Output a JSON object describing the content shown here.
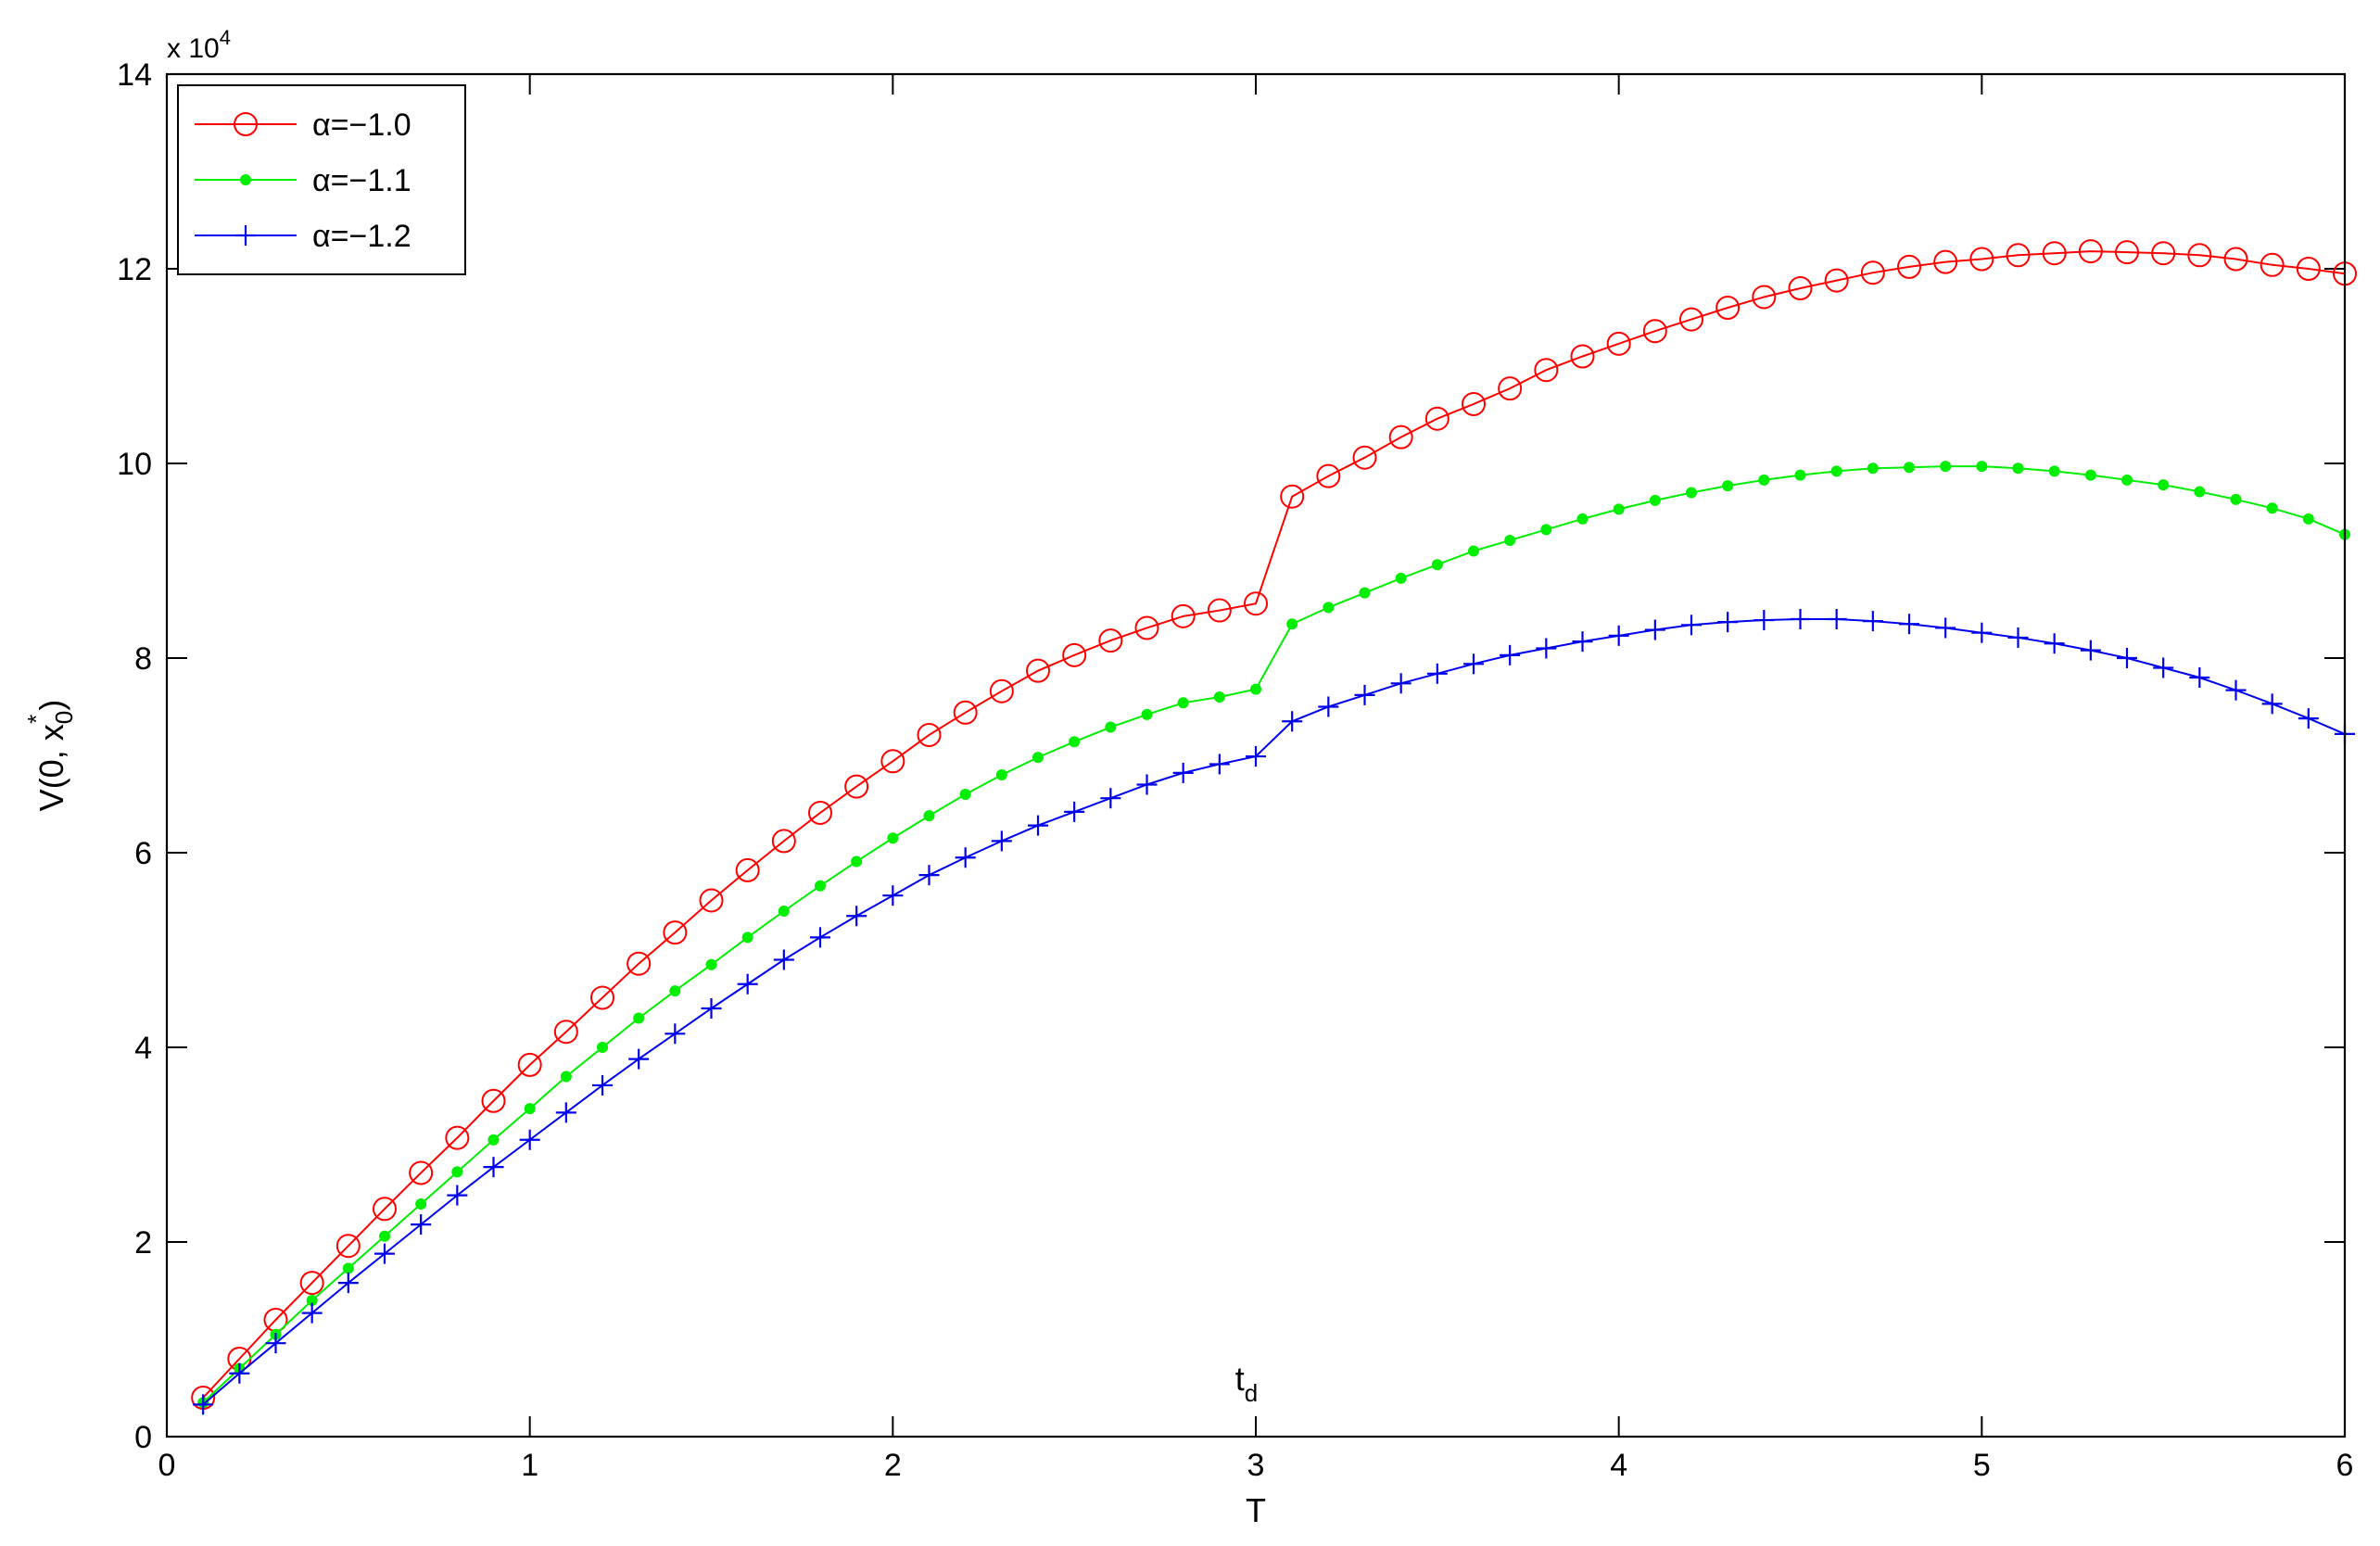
{
  "chart_data": {
    "type": "line",
    "title": "",
    "xlabel": "T",
    "ylabel_main": "V(0, x",
    "ylabel_sub": "0",
    "ylabel_sup": "*",
    "ylabel_close": ")",
    "y_multiplier_prefix": "x 10",
    "y_multiplier_exp": "4",
    "xlim": [
      0,
      6
    ],
    "ylim": [
      0,
      14
    ],
    "y_scale_factor": 10000,
    "xticks": [
      "0",
      "1",
      "2",
      "3",
      "4",
      "5",
      "6"
    ],
    "yticks": [
      "0",
      "2",
      "4",
      "6",
      "8",
      "10",
      "12",
      "14"
    ],
    "annotation": {
      "main": "t",
      "sub": "d",
      "x": 3
    },
    "legend_position": "top-left",
    "grid": false,
    "x": [
      0.1,
      0.2,
      0.3,
      0.4,
      0.5,
      0.6,
      0.7,
      0.8,
      0.9,
      1.0,
      1.1,
      1.2,
      1.3,
      1.4,
      1.5,
      1.6,
      1.7,
      1.8,
      1.9,
      2.0,
      2.1,
      2.2,
      2.3,
      2.4,
      2.5,
      2.6,
      2.7,
      2.8,
      2.9,
      3.0,
      3.1,
      3.2,
      3.3,
      3.4,
      3.5,
      3.6,
      3.7,
      3.8,
      3.9,
      4.0,
      4.1,
      4.2,
      4.3,
      4.4,
      4.5,
      4.6,
      4.7,
      4.8,
      4.9,
      5.0,
      5.1,
      5.2,
      5.3,
      5.4,
      5.5,
      5.6,
      5.7,
      5.8,
      5.9,
      6.0
    ],
    "series": [
      {
        "name": "α=−1.0",
        "color": "#ff0000",
        "marker": "circle",
        "values": [
          0.4,
          0.8,
          1.2,
          1.58,
          1.96,
          2.34,
          2.71,
          3.07,
          3.45,
          3.82,
          4.16,
          4.51,
          4.86,
          5.18,
          5.51,
          5.82,
          6.12,
          6.41,
          6.68,
          6.94,
          7.21,
          7.44,
          7.66,
          7.87,
          8.03,
          8.18,
          8.31,
          8.43,
          8.49,
          8.56,
          9.66,
          9.87,
          10.06,
          10.27,
          10.46,
          10.61,
          10.77,
          10.96,
          11.1,
          11.23,
          11.36,
          11.48,
          11.6,
          11.71,
          11.8,
          11.88,
          11.96,
          12.02,
          12.07,
          12.1,
          12.14,
          12.16,
          12.18,
          12.17,
          12.16,
          12.14,
          12.1,
          12.04,
          12.0,
          11.95
        ]
      },
      {
        "name": "α=−1.1",
        "color": "#00ee00",
        "marker": "dot",
        "values": [
          0.35,
          0.7,
          1.05,
          1.4,
          1.73,
          2.06,
          2.39,
          2.72,
          3.05,
          3.37,
          3.7,
          4.0,
          4.3,
          4.58,
          4.85,
          5.13,
          5.4,
          5.66,
          5.91,
          6.15,
          6.38,
          6.6,
          6.8,
          6.98,
          7.14,
          7.29,
          7.42,
          7.54,
          7.6,
          7.68,
          8.35,
          8.52,
          8.67,
          8.82,
          8.96,
          9.1,
          9.21,
          9.32,
          9.43,
          9.53,
          9.62,
          9.7,
          9.77,
          9.83,
          9.88,
          9.92,
          9.95,
          9.96,
          9.97,
          9.97,
          9.95,
          9.92,
          9.88,
          9.83,
          9.78,
          9.71,
          9.63,
          9.54,
          9.43,
          9.27
        ]
      },
      {
        "name": "α=−1.2",
        "color": "#0000ee",
        "marker": "plus",
        "values": [
          0.33,
          0.65,
          0.96,
          1.27,
          1.58,
          1.88,
          2.18,
          2.48,
          2.77,
          3.05,
          3.33,
          3.61,
          3.88,
          4.14,
          4.4,
          4.65,
          4.9,
          5.13,
          5.35,
          5.56,
          5.77,
          5.95,
          6.12,
          6.28,
          6.42,
          6.56,
          6.7,
          6.82,
          6.91,
          6.99,
          7.35,
          7.5,
          7.62,
          7.74,
          7.84,
          7.94,
          8.03,
          8.1,
          8.17,
          8.23,
          8.29,
          8.34,
          8.37,
          8.39,
          8.4,
          8.4,
          8.38,
          8.35,
          8.31,
          8.26,
          8.21,
          8.15,
          8.08,
          8.0,
          7.9,
          7.8,
          7.67,
          7.53,
          7.38,
          7.22
        ]
      }
    ]
  }
}
